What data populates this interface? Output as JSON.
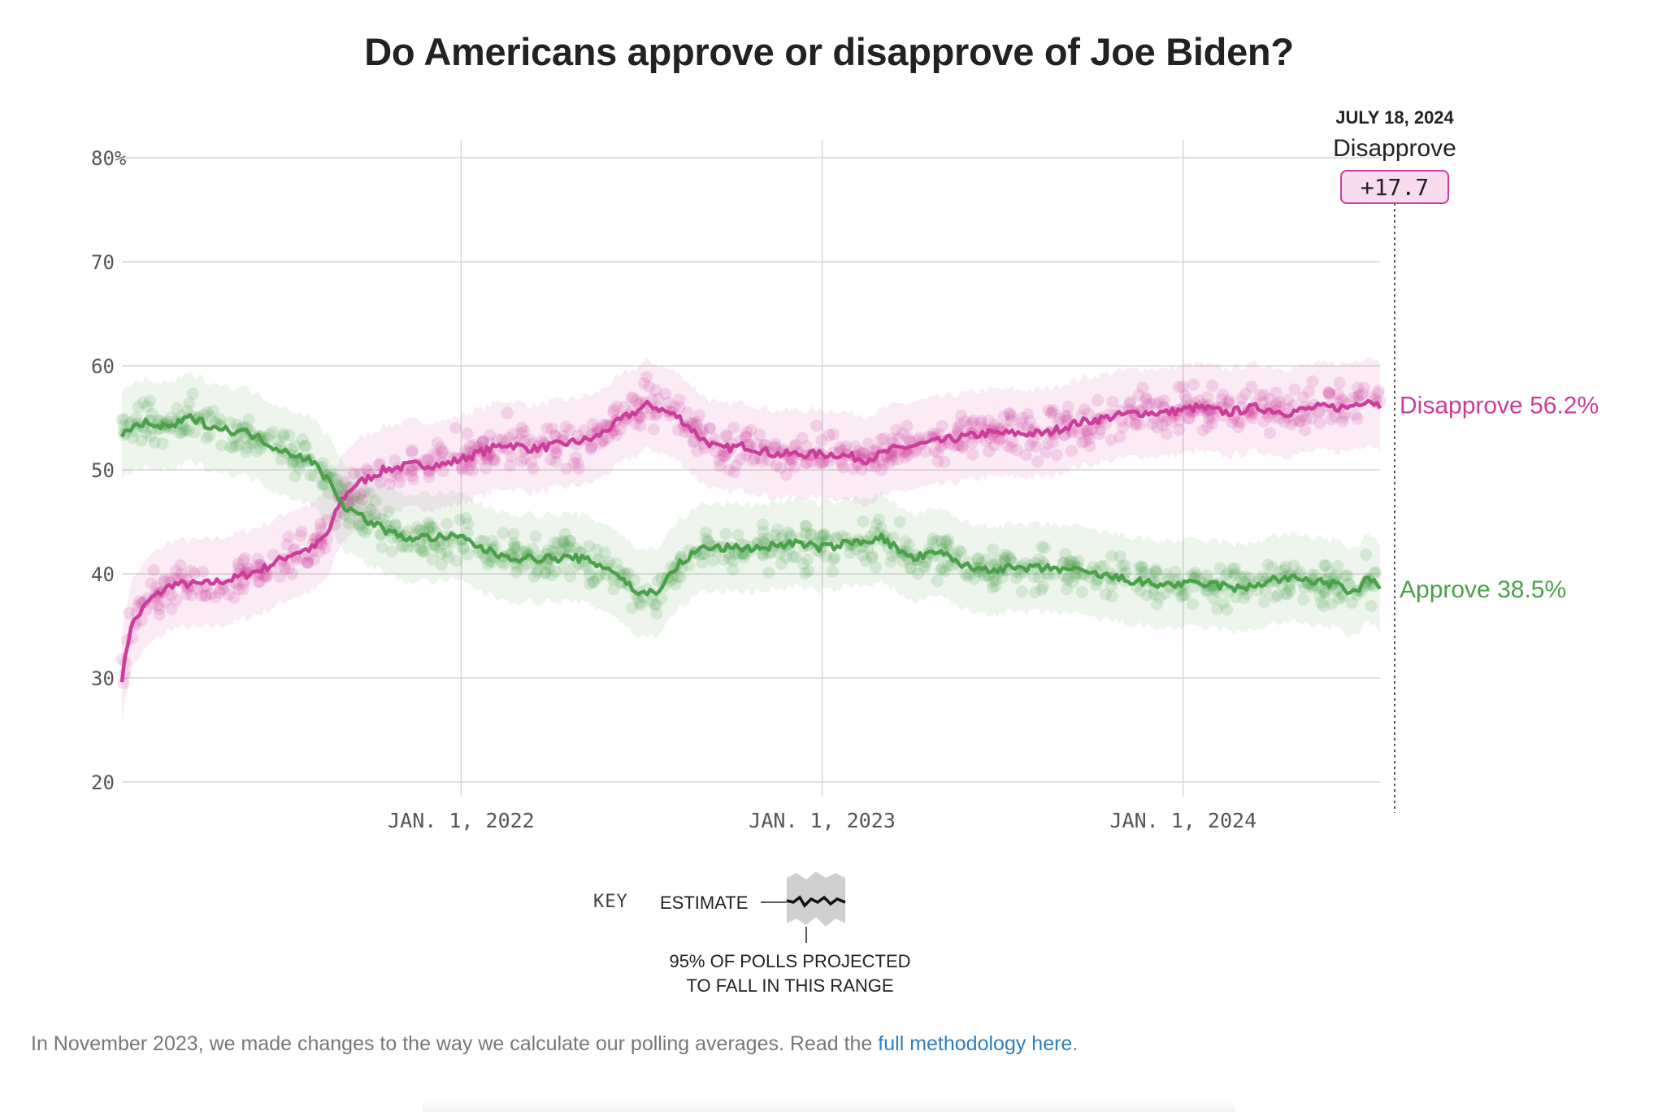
{
  "page": {
    "title": "Do Americans approve or disapprove of Joe Biden?",
    "footnote_prefix": "In November 2023, we made changes to the way we calculate our polling averages. Read the ",
    "footnote_link": "full methodology here",
    "footnote_suffix": "."
  },
  "annotation": {
    "date": "JULY 18, 2024",
    "leader": "Disapprove",
    "margin": "+17.7"
  },
  "key": {
    "heading": "KEY",
    "estimate": "ESTIMATE",
    "range_line1": "95% OF POLLS PROJECTED",
    "range_line2": "TO FALL IN THIS RANGE"
  },
  "colors": {
    "approve": "#4aa14a",
    "disapprove": "#cc3d9b",
    "grid": "#d6d6d6"
  },
  "chart_data": {
    "type": "line",
    "x_start": "2021-01-23",
    "x_end": "2024-07-18",
    "ylim": [
      20,
      80
    ],
    "yticks": [
      {
        "value": 80,
        "label": "80%"
      },
      {
        "value": 70,
        "label": "70"
      },
      {
        "value": 60,
        "label": "60"
      },
      {
        "value": 50,
        "label": "50"
      },
      {
        "value": 40,
        "label": "40"
      },
      {
        "value": 30,
        "label": "30"
      },
      {
        "value": 20,
        "label": "20"
      }
    ],
    "xticks": [
      {
        "date": "2022-01-01",
        "label": "JAN. 1, 2022"
      },
      {
        "date": "2023-01-01",
        "label": "JAN. 1, 2023"
      },
      {
        "date": "2024-01-01",
        "label": "JAN. 1, 2024"
      }
    ],
    "grid": true,
    "series": [
      {
        "name": "Disapprove",
        "end_label": "Disapprove 56.2%",
        "color": "#cc3d9b",
        "points": [
          [
            "2021-01-23",
            30
          ],
          [
            "2021-02-01",
            35
          ],
          [
            "2021-02-20",
            37.5
          ],
          [
            "2021-03-15",
            39
          ],
          [
            "2021-04-15",
            39
          ],
          [
            "2021-05-15",
            39.5
          ],
          [
            "2021-06-15",
            40.5
          ],
          [
            "2021-07-15",
            42
          ],
          [
            "2021-08-05",
            42.5
          ],
          [
            "2021-08-20",
            44
          ],
          [
            "2021-09-01",
            47
          ],
          [
            "2021-09-15",
            48.5
          ],
          [
            "2021-10-15",
            50
          ],
          [
            "2021-11-15",
            50.5
          ],
          [
            "2021-12-15",
            50.5
          ],
          [
            "2022-01-15",
            51.5
          ],
          [
            "2022-02-15",
            52.5
          ],
          [
            "2022-03-15",
            52
          ],
          [
            "2022-04-15",
            52.5
          ],
          [
            "2022-05-15",
            53
          ],
          [
            "2022-06-15",
            55
          ],
          [
            "2022-07-10",
            56.3
          ],
          [
            "2022-08-10",
            55
          ],
          [
            "2022-09-01",
            53
          ],
          [
            "2022-09-20",
            52
          ],
          [
            "2022-10-15",
            52.3
          ],
          [
            "2022-11-15",
            51.5
          ],
          [
            "2022-12-15",
            51.5
          ],
          [
            "2023-01-15",
            51.5
          ],
          [
            "2023-02-15",
            51
          ],
          [
            "2023-03-15",
            52
          ],
          [
            "2023-04-15",
            52.5
          ],
          [
            "2023-05-15",
            53
          ],
          [
            "2023-06-15",
            53.5
          ],
          [
            "2023-07-15",
            53.5
          ],
          [
            "2023-08-15",
            53.5
          ],
          [
            "2023-09-15",
            54.5
          ],
          [
            "2023-10-15",
            55
          ],
          [
            "2023-11-15",
            55.5
          ],
          [
            "2023-12-15",
            55.5
          ],
          [
            "2024-01-15",
            56
          ],
          [
            "2024-02-15",
            55.5
          ],
          [
            "2024-03-15",
            56
          ],
          [
            "2024-04-15",
            55.5
          ],
          [
            "2024-05-15",
            56
          ],
          [
            "2024-06-15",
            56
          ],
          [
            "2024-07-05",
            56.8
          ],
          [
            "2024-07-18",
            56.2
          ]
        ]
      },
      {
        "name": "Approve",
        "end_label": "Approve 38.5%",
        "color": "#4aa14a",
        "points": [
          [
            "2021-01-23",
            53.5
          ],
          [
            "2021-02-15",
            54.5
          ],
          [
            "2021-03-10",
            54
          ],
          [
            "2021-04-01",
            55
          ],
          [
            "2021-05-01",
            54
          ],
          [
            "2021-06-01",
            53.5
          ],
          [
            "2021-07-01",
            52
          ],
          [
            "2021-08-01",
            51
          ],
          [
            "2021-08-20",
            49
          ],
          [
            "2021-09-05",
            46.5
          ],
          [
            "2021-10-01",
            45
          ],
          [
            "2021-11-01",
            43.5
          ],
          [
            "2021-12-01",
            43.5
          ],
          [
            "2022-01-01",
            43.5
          ],
          [
            "2022-02-01",
            42
          ],
          [
            "2022-03-01",
            41.5
          ],
          [
            "2022-04-01",
            41.5
          ],
          [
            "2022-05-01",
            41.5
          ],
          [
            "2022-06-01",
            40.5
          ],
          [
            "2022-07-01",
            38
          ],
          [
            "2022-07-20",
            38.5
          ],
          [
            "2022-08-10",
            41
          ],
          [
            "2022-09-01",
            42.5
          ],
          [
            "2022-10-01",
            42.5
          ],
          [
            "2022-11-01",
            42.5
          ],
          [
            "2022-12-01",
            43
          ],
          [
            "2023-01-01",
            42.5
          ],
          [
            "2023-02-01",
            43
          ],
          [
            "2023-03-01",
            43.5
          ],
          [
            "2023-04-01",
            41.5
          ],
          [
            "2023-05-01",
            42
          ],
          [
            "2023-06-01",
            40.5
          ],
          [
            "2023-07-01",
            40.5
          ],
          [
            "2023-08-01",
            40.5
          ],
          [
            "2023-09-01",
            40.5
          ],
          [
            "2023-10-01",
            40
          ],
          [
            "2023-11-01",
            39.5
          ],
          [
            "2023-12-01",
            39
          ],
          [
            "2024-01-01",
            39
          ],
          [
            "2024-02-01",
            39
          ],
          [
            "2024-03-01",
            38.5
          ],
          [
            "2024-04-01",
            39.5
          ],
          [
            "2024-05-01",
            39.5
          ],
          [
            "2024-06-01",
            39
          ],
          [
            "2024-06-25",
            38
          ],
          [
            "2024-07-05",
            40
          ],
          [
            "2024-07-18",
            38.5
          ]
        ]
      }
    ]
  }
}
